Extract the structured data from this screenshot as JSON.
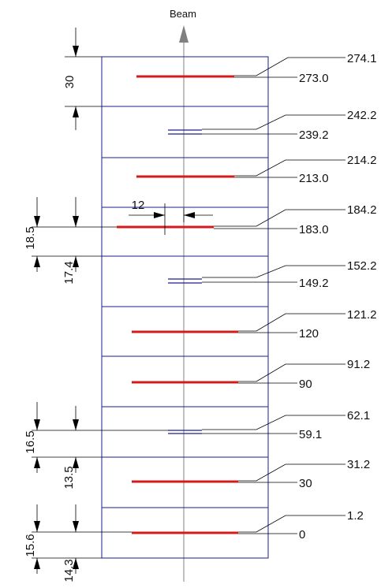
{
  "beam_label": "Beam",
  "colors": {
    "frame": "#1e1e8c",
    "red_layer": "#d41a1a",
    "blue_layer": "#1e1e8c",
    "dimension": "#000000",
    "axis": "#808080"
  },
  "layers": [
    {
      "type": "red",
      "lower": "273.0",
      "upper": "274.1"
    },
    {
      "type": "blue",
      "lower": "239.2",
      "upper": "242.2"
    },
    {
      "type": "red",
      "lower": "213.0",
      "upper": "214.2"
    },
    {
      "type": "red",
      "lower": "183.0",
      "upper": "184.2"
    },
    {
      "type": "blue",
      "lower": "149.2",
      "upper": "152.2"
    },
    {
      "type": "red",
      "lower": "120",
      "upper": "121.2"
    },
    {
      "type": "red",
      "lower": "90",
      "upper": "91.2"
    },
    {
      "type": "blue",
      "lower": "59.1",
      "upper": "62.1"
    },
    {
      "type": "red",
      "lower": "30",
      "upper": "31.2"
    },
    {
      "type": "red",
      "lower": "0",
      "upper": "1.2"
    }
  ],
  "dimensions": {
    "top_spacing": "30",
    "offset_width": "12",
    "pair1_outer": "18.5",
    "pair1_inner": "17.4",
    "pair2_outer": "16.5",
    "pair2_inner": "13.5",
    "pair3_outer": "15.6",
    "pair3_inner": "14.3"
  }
}
